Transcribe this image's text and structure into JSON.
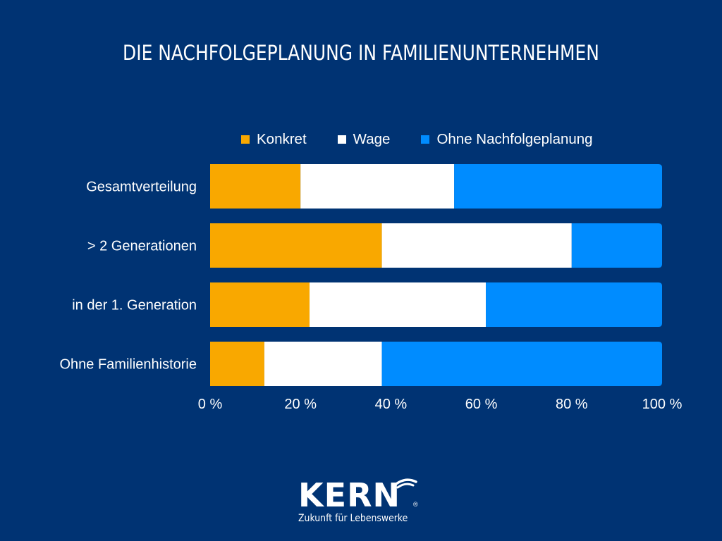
{
  "chart_data": {
    "type": "bar",
    "orientation": "horizontal",
    "stacked": true,
    "title": "DIE NACHFOLGEPLANUNG IN FAMILIENUNTERNEHMEN",
    "categories": [
      "Gesamtverteilung",
      "> 2 Generationen",
      "in der 1. Generation",
      "Ohne Familienhistorie"
    ],
    "series": [
      {
        "name": "Konkret",
        "color": "#F9A800",
        "values": [
          20,
          38,
          22,
          12
        ]
      },
      {
        "name": "Wage",
        "color": "#FFFFFF",
        "values": [
          34,
          42,
          39,
          26
        ]
      },
      {
        "name": "Ohne Nachfolgeplanung",
        "color": "#008CFF",
        "values": [
          46,
          20,
          39,
          62
        ]
      }
    ],
    "xlabel": "",
    "ylabel": "",
    "xlim": [
      0,
      100
    ],
    "xticks": [
      0,
      20,
      40,
      60,
      80,
      100
    ],
    "xtick_labels": [
      "0 %",
      "20 %",
      "40 %",
      "60 %",
      "80 %",
      "100 %"
    ],
    "grid": false,
    "legend_position": "top"
  },
  "colors": {
    "background": "#003373",
    "text": "#FFFFFF"
  },
  "logo": {
    "wordmark": "KERN",
    "registered": "®",
    "tagline": "Zukunft für Lebenswerke"
  }
}
